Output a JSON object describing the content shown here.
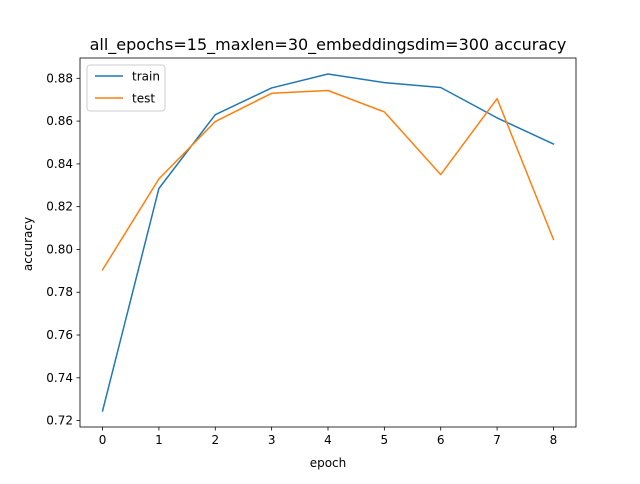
{
  "chart_data": {
    "type": "line",
    "title": "all_epochs=15_maxlen=30_embeddingsdim=300 accuracy",
    "xlabel": "epoch",
    "ylabel": "accuracy",
    "x": [
      0,
      1,
      2,
      3,
      4,
      5,
      6,
      7,
      8
    ],
    "xlim": [
      -0.4,
      8.4
    ],
    "ylim": [
      0.717,
      0.8895
    ],
    "xticks": [
      0,
      1,
      2,
      3,
      4,
      5,
      6,
      7,
      8
    ],
    "yticks": [
      0.72,
      0.74,
      0.76,
      0.78,
      0.8,
      0.82,
      0.84,
      0.86,
      0.88
    ],
    "ytick_labels": [
      "0.72",
      "0.74",
      "0.76",
      "0.78",
      "0.80",
      "0.82",
      "0.84",
      "0.86",
      "0.88"
    ],
    "grid": false,
    "legend_position": "upper-left",
    "series": [
      {
        "name": "train",
        "color": "#1f77b4",
        "values": [
          0.7245,
          0.8285,
          0.863,
          0.8755,
          0.882,
          0.878,
          0.8757,
          0.8615,
          0.8493
        ]
      },
      {
        "name": "test",
        "color": "#ff7f0e",
        "values": [
          0.7905,
          0.833,
          0.8598,
          0.873,
          0.8743,
          0.8643,
          0.835,
          0.8705,
          0.8047
        ]
      }
    ]
  }
}
